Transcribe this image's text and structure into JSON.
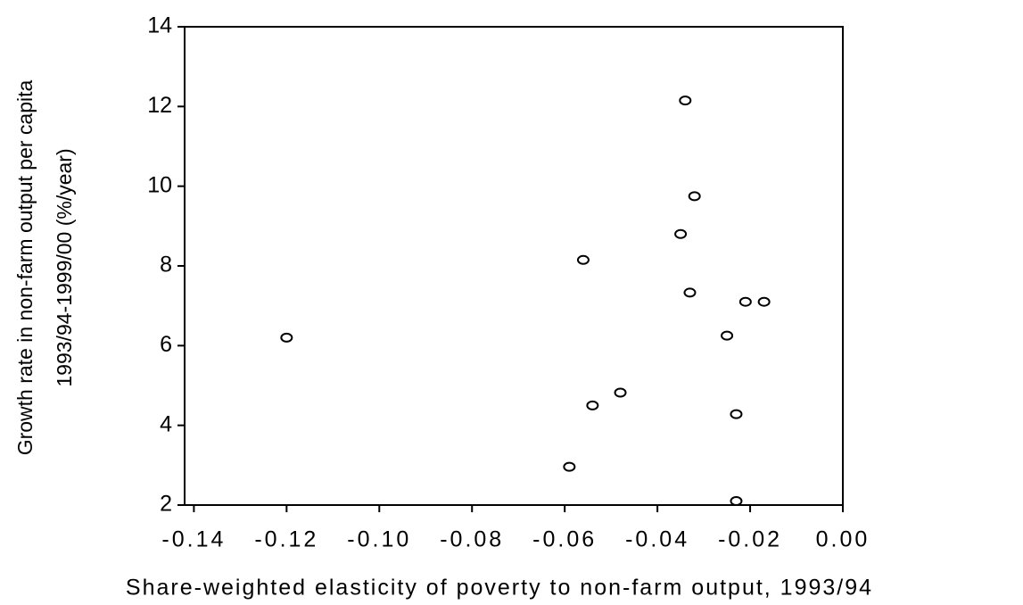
{
  "chart_data": {
    "type": "scatter",
    "x_label": "Share-weighted elasticity of poverty to non-farm output, 1993/94",
    "y_label": [
      "Growth rate in non-farm output per capita",
      "1993/94-1999/00 (%/year)"
    ],
    "x": [
      -0.12,
      -0.034,
      -0.032,
      -0.035,
      -0.056,
      -0.033,
      -0.021,
      -0.017,
      -0.025,
      -0.048,
      -0.054,
      -0.023,
      -0.059,
      -0.023
    ],
    "values": [
      6.2,
      12.15,
      9.75,
      8.8,
      8.15,
      7.33,
      7.1,
      7.1,
      6.25,
      4.82,
      4.5,
      4.28,
      2.96,
      2.1
    ],
    "color": "#000000",
    "xlim": [
      -0.142,
      0
    ],
    "ylim": [
      2,
      14
    ],
    "xticks": [
      {
        "value": -0.14,
        "label": "-0.14"
      },
      {
        "value": -0.12,
        "label": "-0.12"
      },
      {
        "value": -0.1,
        "label": "-0.10"
      },
      {
        "value": -0.08,
        "label": "-0.08"
      },
      {
        "value": -0.06,
        "label": "-0.06"
      },
      {
        "value": -0.04,
        "label": "-0.04"
      },
      {
        "value": -0.02,
        "label": "-0.02"
      },
      {
        "value": 0,
        "label": "0.00"
      }
    ],
    "yticks": [
      2,
      4,
      6,
      8,
      10,
      12,
      14
    ],
    "grid": false
  }
}
